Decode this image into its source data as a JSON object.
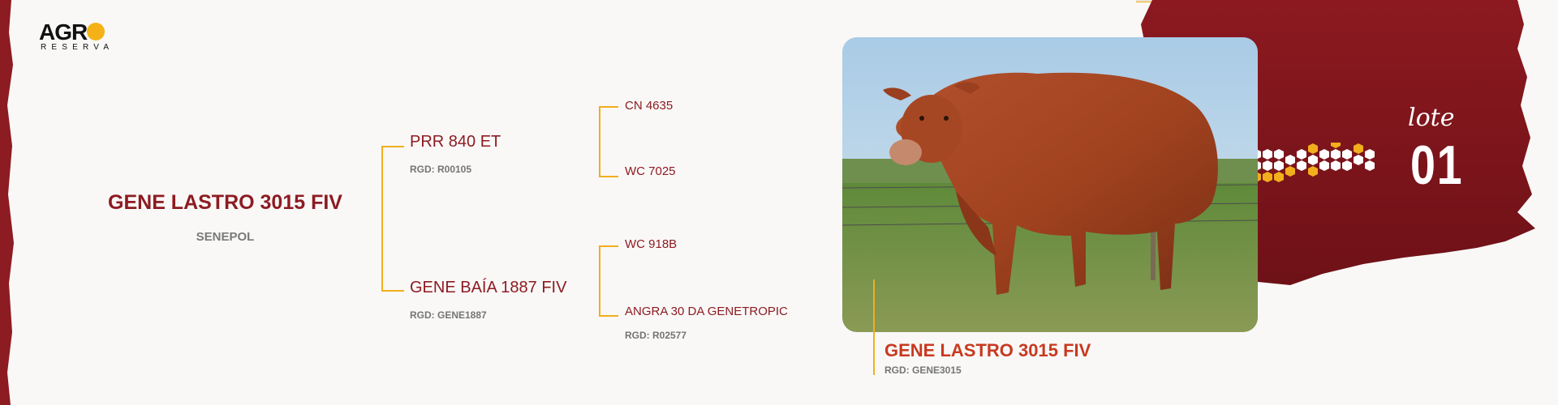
{
  "brand": {
    "name_part": "AGR",
    "subtitle": "RESERVA"
  },
  "subject": {
    "name": "GENE LASTRO 3015 FIV",
    "breed": "SENEPOL"
  },
  "pedigree": {
    "sire": {
      "name": "PRR 840 ET",
      "rgd": "RGD: R00105",
      "sire": {
        "name": "CN 4635"
      },
      "dam": {
        "name": "WC 7025"
      }
    },
    "dam": {
      "name": "GENE BAÍA 1887 FIV",
      "rgd": "RGD: GENE1887",
      "sire": {
        "name": "WC 918B"
      },
      "dam": {
        "name": "ANGRA 30 DA GENETROPIC",
        "rgd": "RGD: R02577"
      }
    }
  },
  "photo": {
    "caption_name": "GENE LASTRO 3015 FIV",
    "caption_rgd": "RGD: GENE3015"
  },
  "lot": {
    "label": "lote",
    "number": "01"
  },
  "colors": {
    "brand_red": "#8d1b22",
    "accent_gold": "#f2ae1c",
    "caption_red": "#c8391f"
  }
}
